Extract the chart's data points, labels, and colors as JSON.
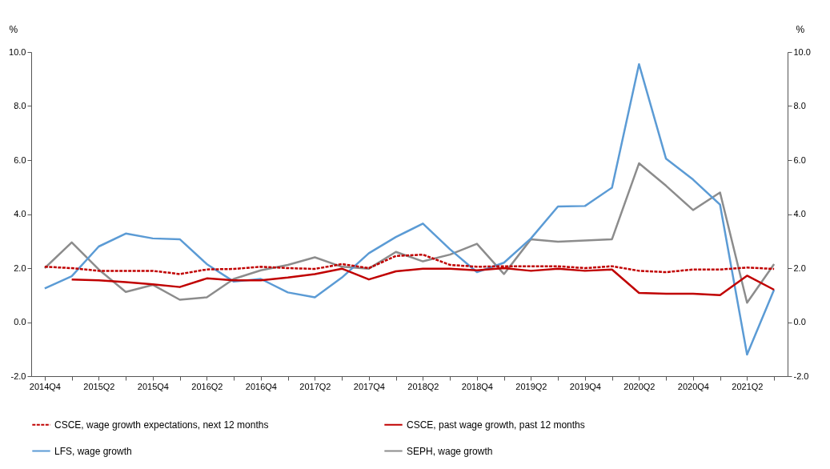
{
  "chart_data": {
    "type": "line",
    "categories": [
      "2014Q4",
      null,
      "2015Q2",
      null,
      "2015Q4",
      null,
      "2016Q2",
      null,
      "2016Q4",
      null,
      "2017Q2",
      null,
      "2017Q4",
      null,
      "2018Q2",
      null,
      "2018Q4",
      null,
      "2019Q2",
      null,
      "2019Q4",
      null,
      "2020Q2",
      null,
      "2020Q4",
      null,
      "2021Q2",
      null
    ],
    "ylabel": "%",
    "y2label": "%",
    "ylim": [
      -2,
      10
    ],
    "yticks": [
      {
        "value": -2,
        "label": "-2.0"
      },
      {
        "value": 0,
        "label": "0.0"
      },
      {
        "value": 2,
        "label": "2.0"
      },
      {
        "value": 4,
        "label": "4.0"
      },
      {
        "value": 6,
        "label": "6.0"
      },
      {
        "value": 8,
        "label": "8.0"
      },
      {
        "value": 10,
        "label": "10.0"
      }
    ],
    "y2lim": [
      -2,
      10
    ],
    "y2ticks": [
      {
        "value": -2,
        "label": "-2.0"
      },
      {
        "value": 0,
        "label": "0.0"
      },
      {
        "value": 2,
        "label": "2.0"
      },
      {
        "value": 4,
        "label": "4.0"
      },
      {
        "value": 6,
        "label": "6.0"
      },
      {
        "value": 8,
        "label": "8.0"
      },
      {
        "value": 10,
        "label": "10.0"
      }
    ],
    "grid": false,
    "legend": "bottom",
    "series": [
      {
        "name": "CSCE, wage growth expectations, next 12 months",
        "color": "#c00000",
        "line_style": "dashed",
        "values": [
          2.05,
          2.0,
          1.9,
          1.9,
          1.9,
          1.78,
          1.95,
          1.97,
          2.05,
          2.0,
          1.97,
          2.15,
          2.0,
          2.45,
          2.5,
          2.12,
          2.05,
          2.07,
          2.07,
          2.07,
          2.0,
          2.07,
          1.9,
          1.85,
          1.95,
          1.95,
          2.02,
          1.97
        ]
      },
      {
        "name": "CSCE, past wage growth, past 12 months",
        "color": "#c00000",
        "line_style": "solid",
        "values": [
          null,
          1.58,
          1.55,
          1.48,
          1.4,
          1.3,
          1.62,
          1.55,
          1.55,
          1.65,
          1.78,
          1.98,
          1.58,
          1.88,
          1.98,
          1.98,
          1.92,
          2.0,
          1.9,
          1.98,
          1.9,
          1.95,
          1.08,
          1.05,
          1.05,
          1.0,
          1.72,
          1.2
        ]
      },
      {
        "name": "LFS, wage growth",
        "color": "#5b9bd5",
        "line_style": "solid",
        "values": [
          1.25,
          1.7,
          2.8,
          3.28,
          3.1,
          3.07,
          2.15,
          1.5,
          1.6,
          1.1,
          0.92,
          1.65,
          2.55,
          3.15,
          3.65,
          2.7,
          1.85,
          2.2,
          3.1,
          4.28,
          4.3,
          4.98,
          9.55,
          6.05,
          5.28,
          4.35,
          -1.2,
          1.2
        ]
      },
      {
        "name": "SEPH, wage growth",
        "color": "#8c8c8c",
        "line_style": "solid",
        "values": [
          2.0,
          2.95,
          1.95,
          1.12,
          1.38,
          0.83,
          0.92,
          1.6,
          1.92,
          2.12,
          2.4,
          2.05,
          1.98,
          2.6,
          2.25,
          2.5,
          2.9,
          1.78,
          3.07,
          2.98,
          3.02,
          3.07,
          5.88,
          5.05,
          4.15,
          4.8,
          0.72,
          2.15
        ]
      }
    ]
  }
}
